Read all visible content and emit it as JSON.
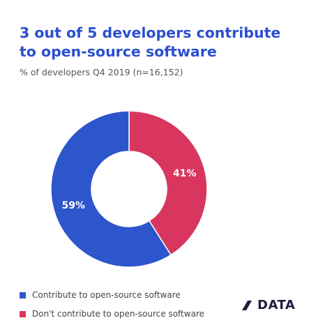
{
  "header": {
    "title": "3 out of 5 developers contribute to open-source software",
    "subtitle": "% of developers Q4 2019 (n=16,152)"
  },
  "chart_data": {
    "type": "pie",
    "title": "3 out of 5 developers contribute to open-source software",
    "subtitle": "% of developers Q4 2019 (n=16,152)",
    "donut": true,
    "legend_position": "bottom-left",
    "categories": [
      "Contribute to open-source software",
      "Don't contribute to open-source software"
    ],
    "values": [
      59,
      41
    ],
    "data_labels": [
      "59%",
      "41%"
    ],
    "colors": [
      "#2d55cc",
      "#d8365e"
    ]
  },
  "logo": {
    "name": "slashdata-logo",
    "text": "DATA",
    "color": "#1b1e3c"
  }
}
